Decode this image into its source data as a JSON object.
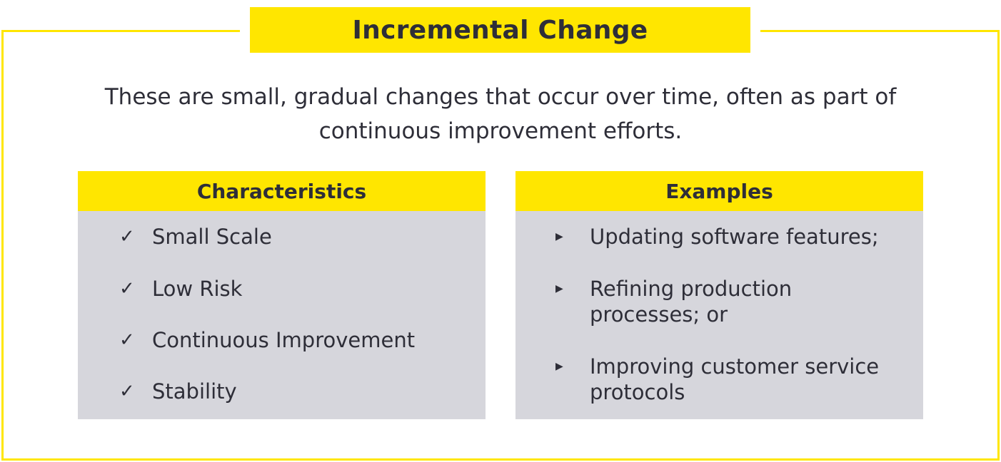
{
  "title": "Incremental Change",
  "description": "These are small, gradual changes that occur over time, often as part of continuous improvement efforts.",
  "characteristics": {
    "header": "Characteristics",
    "bullet_icon": "check-icon",
    "items": [
      "Small Scale",
      "Low Risk",
      "Continuous Improvement",
      "Stability"
    ]
  },
  "examples": {
    "header": "Examples",
    "bullet_icon": "triangle-right-icon",
    "items": [
      "Updating software features;",
      "Refining production processes; or",
      "Improving customer service protocols"
    ]
  },
  "colors": {
    "accent": "#ffe600",
    "panel": "#d6d6dc",
    "text": "#2e2e38"
  }
}
